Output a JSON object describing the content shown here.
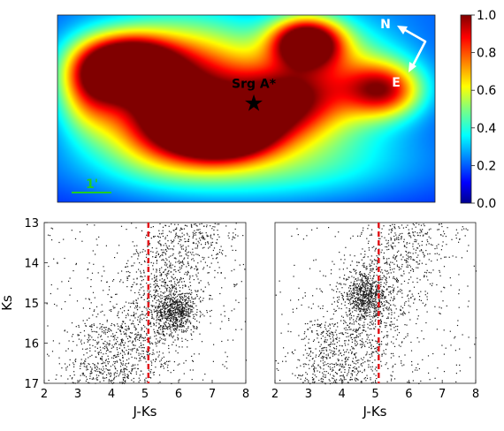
{
  "chart_data": [
    {
      "type": "heatmap",
      "colorbar": {
        "ticks": [
          "1.0",
          "0.8",
          "0.6",
          "0.4",
          "0.2",
          "0.0"
        ],
        "range": [
          0,
          1
        ],
        "colormap": "jet"
      },
      "peaks": [
        {
          "x": 0.18,
          "y": 0.27,
          "value": 1.0
        },
        {
          "x": 0.44,
          "y": 0.62,
          "value": 1.0
        },
        {
          "x": 0.66,
          "y": 0.14,
          "value": 0.9
        },
        {
          "x": 0.59,
          "y": 0.47,
          "value": 0.7
        },
        {
          "x": 0.3,
          "y": 0.55,
          "value": 0.75
        },
        {
          "x": 0.87,
          "y": 0.4,
          "value": 0.6
        },
        {
          "x": 0.08,
          "y": 0.4,
          "value": 0.45
        }
      ],
      "annotations": {
        "source_label": "Srg A*",
        "source_position": {
          "x": 0.52,
          "y": 0.47
        },
        "compass_north": "N",
        "compass_east": "E",
        "scalebar_label": "1'"
      },
      "colors": {
        "scalebar": "#22cc22",
        "compass": "#ffffff",
        "marker": "#000000"
      }
    },
    {
      "type": "scatter",
      "xlabel": "J-Ks",
      "ylabel": "Ks",
      "xlim": [
        2,
        8
      ],
      "ylim": [
        17,
        13
      ],
      "xticks": [
        "2",
        "3",
        "4",
        "5",
        "6",
        "7",
        "8"
      ],
      "yticks": [
        "13",
        "14",
        "15",
        "16",
        "17"
      ],
      "reference_line_x": 5.1,
      "clump": {
        "x": 5.9,
        "y": 15.2
      },
      "colors": {
        "points": "#000000",
        "reference_line": "#e4161b"
      }
    },
    {
      "type": "scatter",
      "xlabel": "J-Ks",
      "ylabel": "",
      "xlim": [
        2,
        8
      ],
      "ylim": [
        17,
        13
      ],
      "xticks": [
        "2",
        "3",
        "4",
        "5",
        "6",
        "7",
        "8"
      ],
      "yticks": [],
      "reference_line_x": 5.1,
      "clump": {
        "x": 4.7,
        "y": 14.8
      },
      "colors": {
        "points": "#000000",
        "reference_line": "#e4161b"
      }
    }
  ]
}
